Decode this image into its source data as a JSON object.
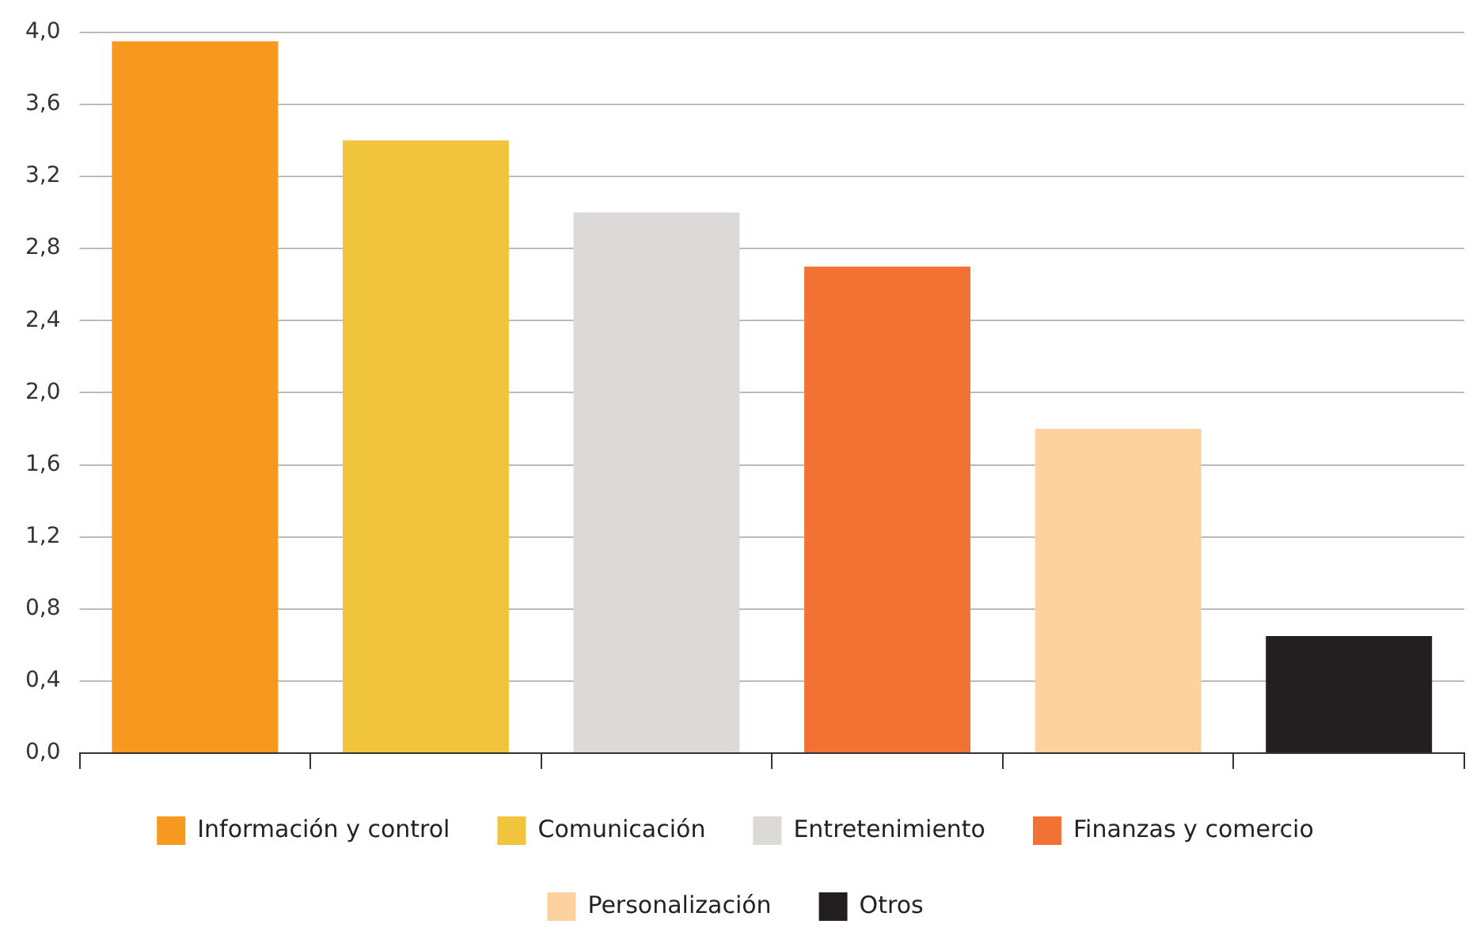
{
  "chart_data": {
    "type": "bar",
    "categories": [
      null,
      null,
      null,
      null,
      null,
      null
    ],
    "series": [
      {
        "name": "Información y control",
        "color": "#f7991e",
        "values": [
          3.95,
          null,
          null,
          null,
          null,
          null
        ]
      },
      {
        "name": "Comunicación",
        "color": "#f0c43c",
        "values": [
          null,
          3.4,
          null,
          null,
          null,
          null
        ]
      },
      {
        "name": "Entretenimiento",
        "color": "#dcdad8",
        "values": [
          null,
          null,
          3.0,
          null,
          null,
          null
        ]
      },
      {
        "name": "Finanzas y comercio",
        "color": "#f27233",
        "values": [
          null,
          null,
          null,
          2.7,
          null,
          null
        ]
      },
      {
        "name": "Personalización",
        "color": "#fdd29e",
        "values": [
          null,
          null,
          null,
          null,
          1.8,
          null
        ]
      },
      {
        "name": "Otros",
        "color": "#231f20",
        "values": [
          null,
          null,
          null,
          null,
          null,
          0.65
        ]
      }
    ],
    "ylim": [
      0,
      4
    ],
    "yticks": [
      {
        "value": 0,
        "label": "0,0"
      },
      {
        "value": 0.4,
        "label": "0,4"
      },
      {
        "value": 0.8,
        "label": "0,8"
      },
      {
        "value": 1.2,
        "label": "1,2"
      },
      {
        "value": 1.6,
        "label": "1,6"
      },
      {
        "value": 2.0,
        "label": "2,0"
      },
      {
        "value": 2.4,
        "label": "2,4"
      },
      {
        "value": 2.8,
        "label": "2,8"
      },
      {
        "value": 3.2,
        "label": "3,2"
      },
      {
        "value": 3.6,
        "label": "3,6"
      },
      {
        "value": 4.0,
        "label": "4,0"
      }
    ],
    "grid": "y",
    "legend": "bottom",
    "tick_labels": "y"
  }
}
